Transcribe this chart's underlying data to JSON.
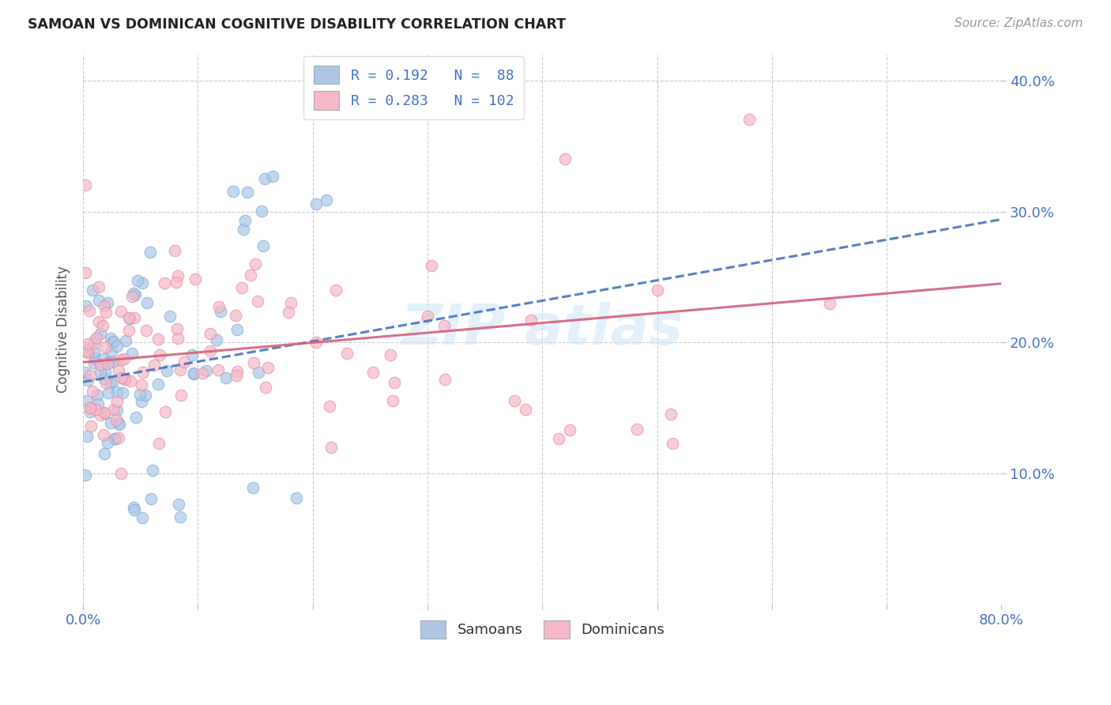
{
  "title": "SAMOAN VS DOMINICAN COGNITIVE DISABILITY CORRELATION CHART",
  "source": "Source: ZipAtlas.com",
  "ylabel": "Cognitive Disability",
  "samoan_color": "#adc6e8",
  "samoan_edge_color": "#7badd4",
  "dominican_color": "#f5b8c8",
  "dominican_edge_color": "#e88aa0",
  "samoan_line_color": "#4472c4",
  "dominican_line_color": "#d4607a",
  "background_color": "#ffffff",
  "grid_color": "#cccccc",
  "title_color": "#222222",
  "ylabel_color": "#555555",
  "tick_color": "#4472c4",
  "watermark_color": "#cde4f5",
  "legend_r1": "R = 0.192",
  "legend_n1": "N =  88",
  "legend_r2": "R = 0.283",
  "legend_n2": "N = 102",
  "samoan_line_intercept": 0.17,
  "samoan_line_slope": 0.155,
  "dominican_line_intercept": 0.185,
  "dominican_line_slope": 0.075
}
